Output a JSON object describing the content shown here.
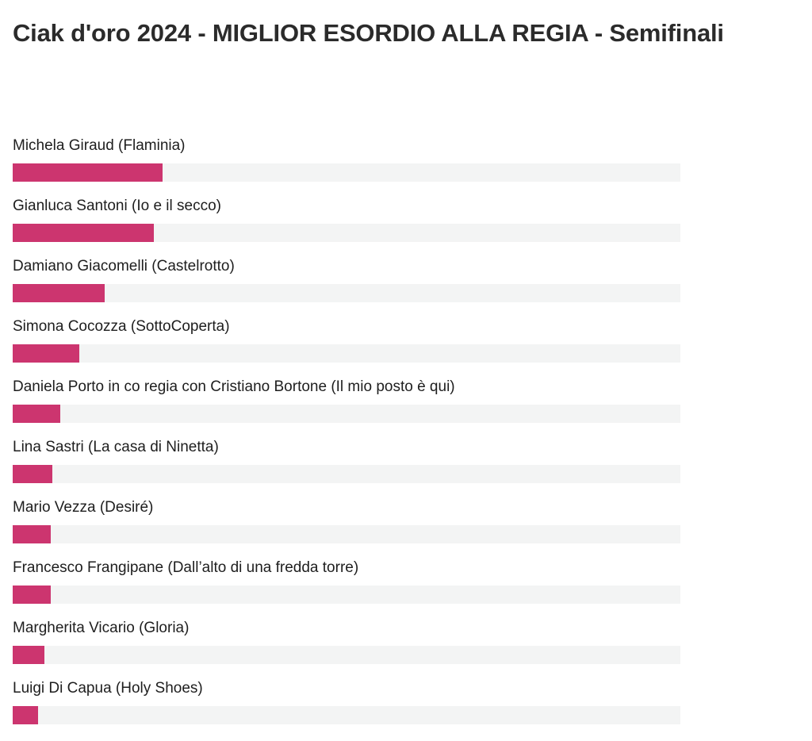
{
  "poll": {
    "title": "Ciak d'oro 2024 - MIGLIOR ESORDIO ALLA REGIA - Semifinali",
    "bar_color": "#cc356f",
    "track_color": "#f3f4f4",
    "answers": [
      {
        "label": "Michela Giraud (Flaminia)",
        "share": 0.224
      },
      {
        "label": "Gianluca Santoni (Io e il secco)",
        "share": 0.211
      },
      {
        "label": "Damiano Giacomelli (Castelrotto)",
        "share": 0.138
      },
      {
        "label": "Simona Cocozza (SottoCoperta)",
        "share": 0.1
      },
      {
        "label": "Daniela Porto in co regia con Cristiano Bortone (Il mio posto è qui)",
        "share": 0.071
      },
      {
        "label": "Lina Sastri (La casa di Ninetta)",
        "share": 0.059
      },
      {
        "label": "Mario Vezza (Desiré)",
        "share": 0.057
      },
      {
        "label": "Francesco Frangipane (Dall’alto di una fredda torre)",
        "share": 0.057
      },
      {
        "label": "Margherita Vicario (Gloria)",
        "share": 0.047
      },
      {
        "label": "Luigi Di Capua (Holy Shoes)",
        "share": 0.038
      }
    ]
  }
}
